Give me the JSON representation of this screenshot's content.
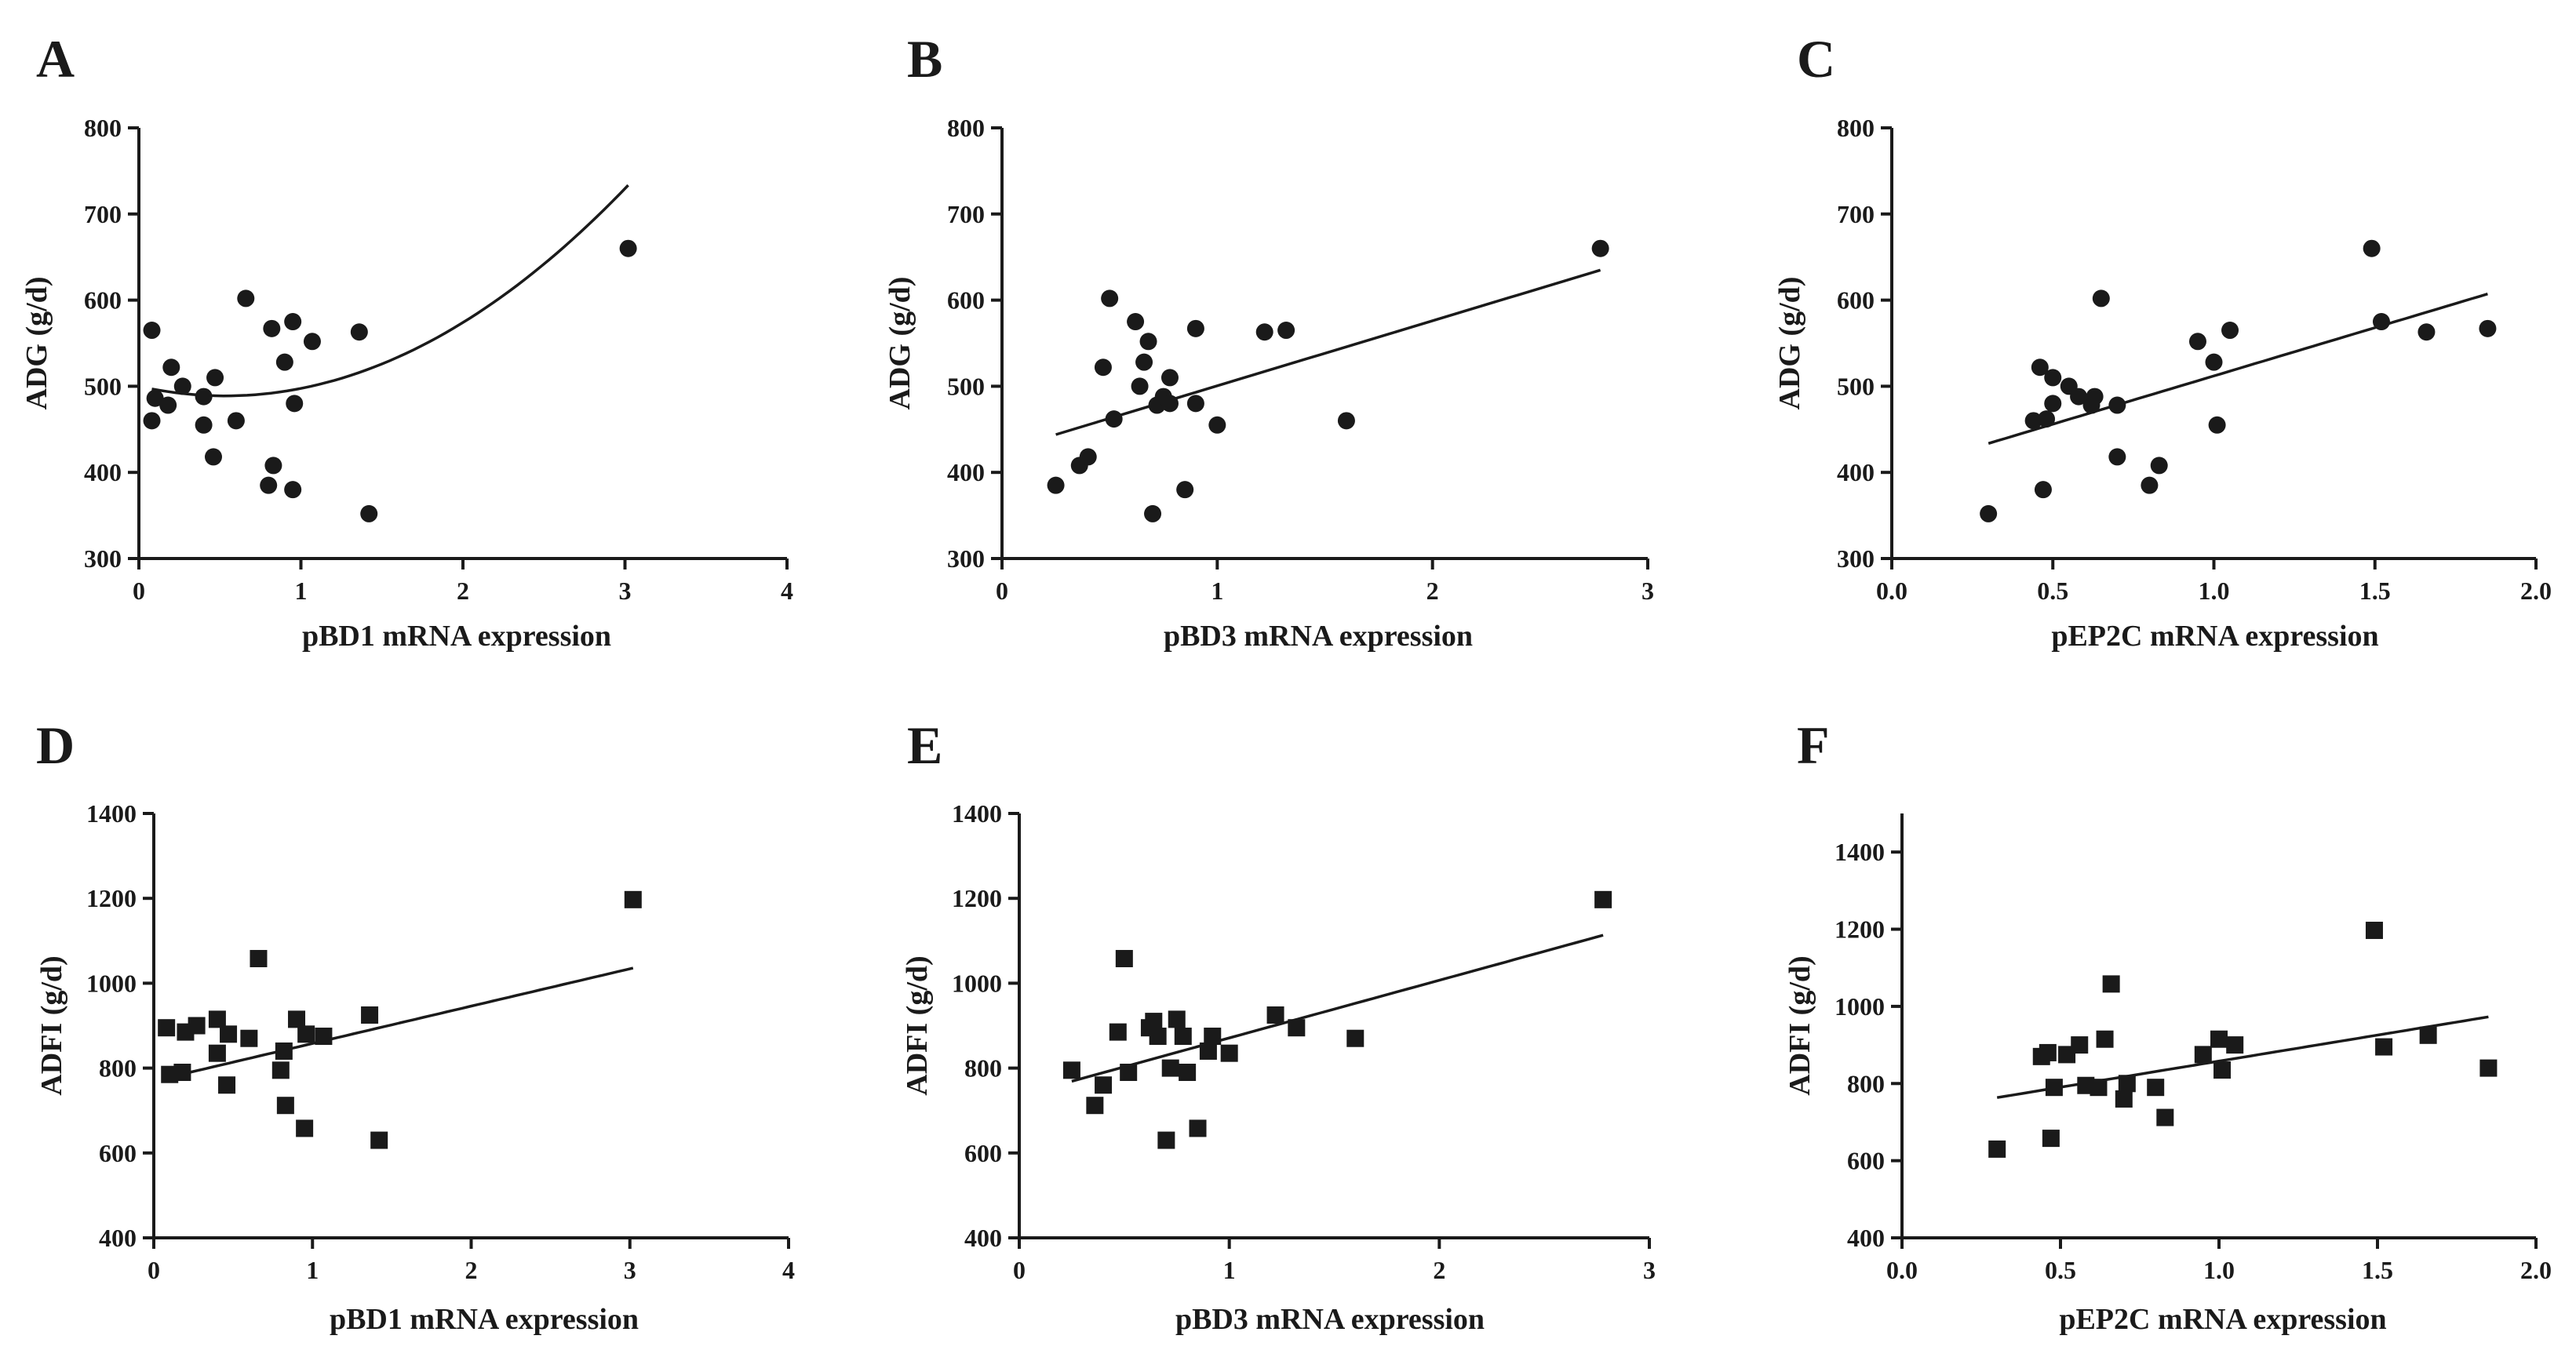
{
  "chart_data": [
    {
      "type": "scatter",
      "panel": "A",
      "xlabel": "pBD1 mRNA expression",
      "ylabel": "ADG (g/d)",
      "xlim": [
        0,
        4
      ],
      "ylim": [
        300,
        800
      ],
      "xticks": [
        0,
        1,
        2,
        3,
        4
      ],
      "xtick_labels": [
        "0",
        "1",
        "2",
        "3",
        "4"
      ],
      "yticks": [
        300,
        400,
        500,
        600,
        700,
        800
      ],
      "ytick_labels": [
        "300",
        "400",
        "500",
        "600",
        "700",
        "800"
      ],
      "marker": "circle",
      "points": [
        [
          0.08,
          565
        ],
        [
          0.08,
          460
        ],
        [
          0.1,
          486
        ],
        [
          0.18,
          478
        ],
        [
          0.2,
          522
        ],
        [
          0.27,
          500
        ],
        [
          0.4,
          488
        ],
        [
          0.4,
          455
        ],
        [
          0.46,
          418
        ],
        [
          0.47,
          510
        ],
        [
          0.6,
          460
        ],
        [
          0.66,
          602
        ],
        [
          0.8,
          385
        ],
        [
          0.82,
          567
        ],
        [
          0.83,
          408
        ],
        [
          0.9,
          528
        ],
        [
          0.95,
          575
        ],
        [
          0.95,
          380
        ],
        [
          0.96,
          480
        ],
        [
          1.07,
          552
        ],
        [
          1.36,
          563
        ],
        [
          1.42,
          352
        ],
        [
          3.02,
          660
        ]
      ],
      "fit": {
        "kind": "quadratic",
        "coef": [
          500,
          -42,
          39.5
        ],
        "x_range": [
          0.08,
          3.02
        ]
      }
    },
    {
      "type": "scatter",
      "panel": "B",
      "xlabel": "pBD3 mRNA expression",
      "ylabel": "ADG (g/d)",
      "xlim": [
        0,
        3
      ],
      "ylim": [
        300,
        800
      ],
      "xticks": [
        0,
        1,
        2,
        3
      ],
      "xtick_labels": [
        "0",
        "1",
        "2",
        "3"
      ],
      "yticks": [
        300,
        400,
        500,
        600,
        700,
        800
      ],
      "ytick_labels": [
        "300",
        "400",
        "500",
        "600",
        "700",
        "800"
      ],
      "marker": "circle",
      "points": [
        [
          0.25,
          385
        ],
        [
          0.36,
          408
        ],
        [
          0.4,
          418
        ],
        [
          0.47,
          522
        ],
        [
          0.5,
          602
        ],
        [
          0.52,
          462
        ],
        [
          0.62,
          575
        ],
        [
          0.64,
          500
        ],
        [
          0.66,
          528
        ],
        [
          0.68,
          552
        ],
        [
          0.7,
          352
        ],
        [
          0.72,
          478
        ],
        [
          0.75,
          488
        ],
        [
          0.78,
          480
        ],
        [
          0.78,
          510
        ],
        [
          0.85,
          380
        ],
        [
          0.9,
          567
        ],
        [
          0.9,
          480
        ],
        [
          1.0,
          455
        ],
        [
          1.22,
          563
        ],
        [
          1.32,
          565
        ],
        [
          1.6,
          460
        ],
        [
          2.78,
          660
        ]
      ],
      "fit": {
        "kind": "linear",
        "coef": [
          425,
          75.5
        ],
        "x_range": [
          0.25,
          2.78
        ]
      }
    },
    {
      "type": "scatter",
      "panel": "C",
      "xlabel": "pEP2C mRNA expression",
      "ylabel": "ADG (g/d)",
      "xlim": [
        0,
        2
      ],
      "ylim": [
        300,
        800
      ],
      "xticks": [
        0,
        0.5,
        1,
        1.5,
        2
      ],
      "xtick_labels": [
        "0.0",
        "0.5",
        "1.0",
        "1.5",
        "2.0"
      ],
      "yticks": [
        300,
        400,
        500,
        600,
        700,
        800
      ],
      "ytick_labels": [
        "300",
        "400",
        "500",
        "600",
        "700",
        "800"
      ],
      "marker": "circle",
      "points": [
        [
          0.3,
          352
        ],
        [
          0.44,
          460
        ],
        [
          0.46,
          522
        ],
        [
          0.47,
          380
        ],
        [
          0.48,
          462
        ],
        [
          0.5,
          480
        ],
        [
          0.5,
          510
        ],
        [
          0.55,
          500
        ],
        [
          0.58,
          488
        ],
        [
          0.62,
          478
        ],
        [
          0.63,
          488
        ],
        [
          0.65,
          602
        ],
        [
          0.7,
          418
        ],
        [
          0.7,
          478
        ],
        [
          0.8,
          385
        ],
        [
          0.83,
          408
        ],
        [
          0.95,
          552
        ],
        [
          1.0,
          528
        ],
        [
          1.01,
          455
        ],
        [
          1.05,
          565
        ],
        [
          1.49,
          660
        ],
        [
          1.52,
          575
        ],
        [
          1.66,
          563
        ],
        [
          1.85,
          567
        ]
      ],
      "fit": {
        "kind": "linear",
        "coef": [
          400,
          112
        ],
        "x_range": [
          0.3,
          1.85
        ]
      }
    },
    {
      "type": "scatter",
      "panel": "D",
      "xlabel": "pBD1 mRNA expression",
      "ylabel": "ADFI (g/d)",
      "xlim": [
        0,
        4
      ],
      "ylim": [
        400,
        1400
      ],
      "xticks": [
        0,
        1,
        2,
        3,
        4
      ],
      "xtick_labels": [
        "0",
        "1",
        "2",
        "3",
        "4"
      ],
      "yticks": [
        400,
        600,
        800,
        1000,
        1200,
        1400
      ],
      "ytick_labels": [
        "400",
        "600",
        "800",
        "1000",
        "1200",
        "1400"
      ],
      "marker": "square",
      "points": [
        [
          0.08,
          895
        ],
        [
          0.1,
          785
        ],
        [
          0.18,
          790
        ],
        [
          0.2,
          885
        ],
        [
          0.27,
          900
        ],
        [
          0.4,
          915
        ],
        [
          0.4,
          835
        ],
        [
          0.46,
          760
        ],
        [
          0.47,
          880
        ],
        [
          0.6,
          870
        ],
        [
          0.66,
          1058
        ],
        [
          0.8,
          795
        ],
        [
          0.82,
          840
        ],
        [
          0.83,
          712
        ],
        [
          0.9,
          915
        ],
        [
          0.95,
          658
        ],
        [
          0.96,
          880
        ],
        [
          1.07,
          875
        ],
        [
          1.36,
          925
        ],
        [
          1.42,
          630
        ],
        [
          3.02,
          1197
        ]
      ],
      "fit": {
        "kind": "linear",
        "coef": [
          770,
          88
        ],
        "x_range": [
          0.08,
          3.02
        ]
      }
    },
    {
      "type": "scatter",
      "panel": "E",
      "xlabel": "pBD3 mRNA expression",
      "ylabel": "ADFI (g/d)",
      "xlim": [
        0,
        3
      ],
      "ylim": [
        400,
        1400
      ],
      "xticks": [
        0,
        1,
        2,
        3
      ],
      "xtick_labels": [
        "0",
        "1",
        "2",
        "3"
      ],
      "yticks": [
        400,
        600,
        800,
        1000,
        1200,
        1400
      ],
      "ytick_labels": [
        "400",
        "600",
        "800",
        "1000",
        "1200",
        "1400"
      ],
      "marker": "square",
      "points": [
        [
          0.25,
          795
        ],
        [
          0.36,
          712
        ],
        [
          0.4,
          760
        ],
        [
          0.47,
          885
        ],
        [
          0.5,
          1058
        ],
        [
          0.52,
          790
        ],
        [
          0.62,
          895
        ],
        [
          0.64,
          910
        ],
        [
          0.66,
          875
        ],
        [
          0.7,
          630
        ],
        [
          0.72,
          800
        ],
        [
          0.75,
          915
        ],
        [
          0.78,
          875
        ],
        [
          0.8,
          790
        ],
        [
          0.85,
          658
        ],
        [
          0.9,
          840
        ],
        [
          0.92,
          875
        ],
        [
          1.0,
          835
        ],
        [
          1.22,
          925
        ],
        [
          1.32,
          895
        ],
        [
          1.6,
          870
        ],
        [
          2.78,
          1197
        ]
      ],
      "fit": {
        "kind": "linear",
        "coef": [
          735,
          136
        ],
        "x_range": [
          0.25,
          2.78
        ]
      }
    },
    {
      "type": "scatter",
      "panel": "F",
      "xlabel": "pEP2C mRNA expression",
      "ylabel": "ADFI (g/d)",
      "xlim": [
        0,
        2
      ],
      "ylim": [
        400,
        1500
      ],
      "xticks": [
        0,
        0.5,
        1,
        1.5,
        2
      ],
      "xtick_labels": [
        "0.0",
        "0.5",
        "1.0",
        "1.5",
        "2.0"
      ],
      "yticks": [
        400,
        600,
        800,
        1000,
        1200,
        1400
      ],
      "ytick_labels": [
        "400",
        "600",
        "800",
        "1000",
        "1200",
        "1400"
      ],
      "marker": "square",
      "points": [
        [
          0.3,
          630
        ],
        [
          0.44,
          870
        ],
        [
          0.46,
          880
        ],
        [
          0.47,
          658
        ],
        [
          0.48,
          790
        ],
        [
          0.52,
          875
        ],
        [
          0.56,
          900
        ],
        [
          0.58,
          795
        ],
        [
          0.62,
          790
        ],
        [
          0.64,
          915
        ],
        [
          0.66,
          1058
        ],
        [
          0.7,
          760
        ],
        [
          0.71,
          800
        ],
        [
          0.8,
          790
        ],
        [
          0.83,
          712
        ],
        [
          0.95,
          875
        ],
        [
          1.0,
          915
        ],
        [
          1.01,
          835
        ],
        [
          1.05,
          900
        ],
        [
          1.49,
          1197
        ],
        [
          1.52,
          895
        ],
        [
          1.66,
          925
        ],
        [
          1.85,
          840
        ]
      ],
      "fit": {
        "kind": "linear",
        "coef": [
          723,
          135
        ],
        "x_range": [
          0.3,
          1.85
        ]
      }
    }
  ]
}
